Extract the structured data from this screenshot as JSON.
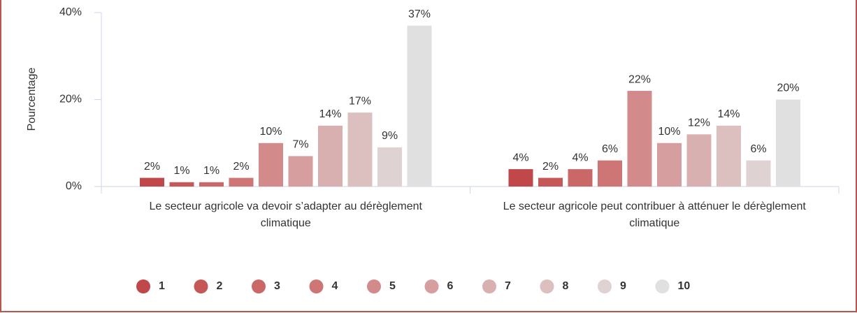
{
  "chart_data": {
    "type": "bar",
    "y_label": "Pourcentage",
    "categories": [
      "Le secteur agricole va devoir s’adapter au dérèglement climatique",
      "Le secteur agricole peut contribuer à atténuer le dérèglement climatique"
    ],
    "series": [
      {
        "name": "1",
        "color": "#c0484a",
        "values": [
          2,
          4
        ],
        "value_labels": [
          "2%",
          "4%"
        ]
      },
      {
        "name": "2",
        "color": "#c55757",
        "values": [
          1,
          2
        ],
        "value_labels": [
          "1%",
          "2%"
        ]
      },
      {
        "name": "3",
        "color": "#ca6868",
        "values": [
          1,
          4
        ],
        "value_labels": [
          "1%",
          "4%"
        ]
      },
      {
        "name": "4",
        "color": "#ce7676",
        "values": [
          2,
          6
        ],
        "value_labels": [
          "2%",
          "6%"
        ]
      },
      {
        "name": "5",
        "color": "#d28a8a",
        "values": [
          10,
          22
        ],
        "value_labels": [
          "10%",
          "22%"
        ]
      },
      {
        "name": "6",
        "color": "#d69e9e",
        "values": [
          7,
          10
        ],
        "value_labels": [
          "7%",
          "10%"
        ]
      },
      {
        "name": "7",
        "color": "#d9b0b0",
        "values": [
          14,
          12
        ],
        "value_labels": [
          "14%",
          "12%"
        ]
      },
      {
        "name": "8",
        "color": "#dcbfbf",
        "values": [
          17,
          14
        ],
        "value_labels": [
          "17%",
          "14%"
        ]
      },
      {
        "name": "9",
        "color": "#dfd2d2",
        "values": [
          9,
          6
        ],
        "value_labels": [
          "9%",
          "6%"
        ]
      },
      {
        "name": "10",
        "color": "#e0e0e0",
        "values": [
          37,
          20
        ],
        "value_labels": [
          "37%",
          "20%"
        ]
      }
    ],
    "ylim": [
      0,
      40
    ],
    "yticks": [
      {
        "value": 0,
        "label": "0%"
      },
      {
        "value": 20,
        "label": "20%"
      },
      {
        "value": 40,
        "label": "40%"
      }
    ],
    "legend": "bottom"
  }
}
